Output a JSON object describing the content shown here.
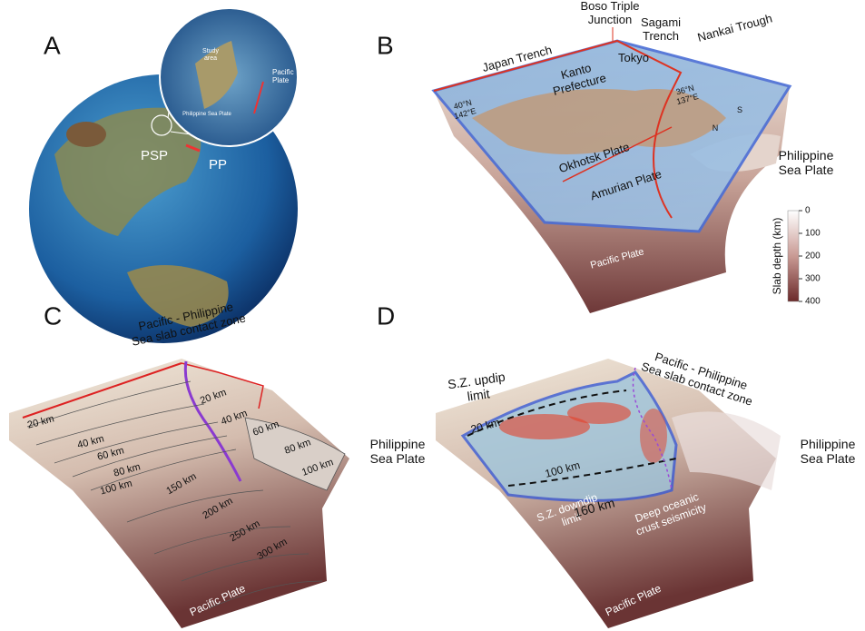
{
  "panels": [
    {
      "label": "A",
      "texts": [
        [
          "Study",
          "area"
        ],
        [
          "Pacific",
          "Plate"
        ],
        [
          "Philippine Sea Plate"
        ],
        [
          "PSP"
        ],
        [
          "PP"
        ]
      ]
    },
    {
      "label": "B",
      "texts": [
        [
          "Japan Trench"
        ],
        [
          "Boso Triple",
          "Junction"
        ],
        [
          "Sagami",
          "Trench"
        ],
        [
          "Nankai Trough"
        ],
        [
          "Kanto",
          "Prefecture"
        ],
        [
          "Tokyo"
        ],
        [
          "40°N",
          "142°E"
        ],
        [
          "36°N",
          "137°E"
        ],
        [
          "Okhotsk Plate"
        ],
        [
          "Amurian Plate"
        ],
        [
          "Philippine",
          "Sea Plate"
        ],
        [
          "Pacific Plate"
        ],
        [
          "N"
        ],
        [
          "S"
        ]
      ],
      "colorbar": {
        "title": "Slab depth (km)",
        "range": [
          0,
          400
        ],
        "ticks": [
          0,
          100,
          200,
          300,
          400
        ]
      }
    },
    {
      "label": "C",
      "texts": [
        [
          "Pacific - Philippine",
          "Sea slab contact zone"
        ],
        [
          "20 km"
        ],
        [
          "40 km"
        ],
        [
          "60 km"
        ],
        [
          "80 km"
        ],
        [
          "100 km"
        ],
        [
          "150 km"
        ],
        [
          "200 km"
        ],
        [
          "250 km"
        ],
        [
          "300 km"
        ],
        [
          "20 km"
        ],
        [
          "40 km"
        ],
        [
          "60 km"
        ],
        [
          "80 km"
        ],
        [
          "100 km"
        ],
        [
          "Philippine",
          "Sea Plate"
        ],
        [
          "Pacific Plate"
        ]
      ]
    },
    {
      "label": "D",
      "texts": [
        [
          "S.Z. updip",
          "limit"
        ],
        [
          "Pacific - Philippine",
          "Sea slab contact zone"
        ],
        [
          "20 km"
        ],
        [
          "100 km"
        ],
        [
          "S.Z. downdip",
          "limit"
        ],
        [
          "160 km"
        ],
        [
          "Deep oceanic",
          "crust seismicity"
        ],
        [
          "Philippine",
          "Sea Plate"
        ],
        [
          "Pacific Plate"
        ]
      ]
    }
  ]
}
